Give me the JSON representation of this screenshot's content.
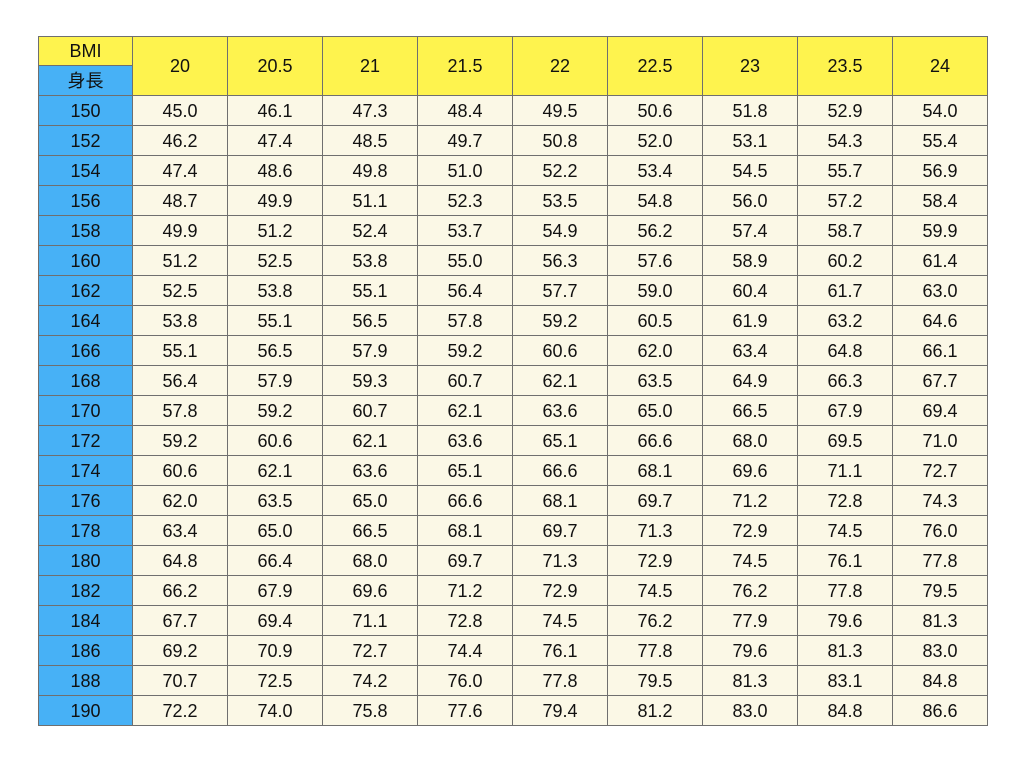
{
  "table": {
    "corner_top": "BMI",
    "corner_bottom": "身長",
    "bmi_values": [
      "20",
      "20.5",
      "21",
      "21.5",
      "22",
      "22.5",
      "23",
      "23.5",
      "24"
    ],
    "rows": [
      {
        "height": "150",
        "weights": [
          "45.0",
          "46.1",
          "47.3",
          "48.4",
          "49.5",
          "50.6",
          "51.8",
          "52.9",
          "54.0"
        ]
      },
      {
        "height": "152",
        "weights": [
          "46.2",
          "47.4",
          "48.5",
          "49.7",
          "50.8",
          "52.0",
          "53.1",
          "54.3",
          "55.4"
        ]
      },
      {
        "height": "154",
        "weights": [
          "47.4",
          "48.6",
          "49.8",
          "51.0",
          "52.2",
          "53.4",
          "54.5",
          "55.7",
          "56.9"
        ]
      },
      {
        "height": "156",
        "weights": [
          "48.7",
          "49.9",
          "51.1",
          "52.3",
          "53.5",
          "54.8",
          "56.0",
          "57.2",
          "58.4"
        ]
      },
      {
        "height": "158",
        "weights": [
          "49.9",
          "51.2",
          "52.4",
          "53.7",
          "54.9",
          "56.2",
          "57.4",
          "58.7",
          "59.9"
        ]
      },
      {
        "height": "160",
        "weights": [
          "51.2",
          "52.5",
          "53.8",
          "55.0",
          "56.3",
          "57.6",
          "58.9",
          "60.2",
          "61.4"
        ]
      },
      {
        "height": "162",
        "weights": [
          "52.5",
          "53.8",
          "55.1",
          "56.4",
          "57.7",
          "59.0",
          "60.4",
          "61.7",
          "63.0"
        ]
      },
      {
        "height": "164",
        "weights": [
          "53.8",
          "55.1",
          "56.5",
          "57.8",
          "59.2",
          "60.5",
          "61.9",
          "63.2",
          "64.6"
        ]
      },
      {
        "height": "166",
        "weights": [
          "55.1",
          "56.5",
          "57.9",
          "59.2",
          "60.6",
          "62.0",
          "63.4",
          "64.8",
          "66.1"
        ]
      },
      {
        "height": "168",
        "weights": [
          "56.4",
          "57.9",
          "59.3",
          "60.7",
          "62.1",
          "63.5",
          "64.9",
          "66.3",
          "67.7"
        ]
      },
      {
        "height": "170",
        "weights": [
          "57.8",
          "59.2",
          "60.7",
          "62.1",
          "63.6",
          "65.0",
          "66.5",
          "67.9",
          "69.4"
        ]
      },
      {
        "height": "172",
        "weights": [
          "59.2",
          "60.6",
          "62.1",
          "63.6",
          "65.1",
          "66.6",
          "68.0",
          "69.5",
          "71.0"
        ]
      },
      {
        "height": "174",
        "weights": [
          "60.6",
          "62.1",
          "63.6",
          "65.1",
          "66.6",
          "68.1",
          "69.6",
          "71.1",
          "72.7"
        ]
      },
      {
        "height": "176",
        "weights": [
          "62.0",
          "63.5",
          "65.0",
          "66.6",
          "68.1",
          "69.7",
          "71.2",
          "72.8",
          "74.3"
        ]
      },
      {
        "height": "178",
        "weights": [
          "63.4",
          "65.0",
          "66.5",
          "68.1",
          "69.7",
          "71.3",
          "72.9",
          "74.5",
          "76.0"
        ]
      },
      {
        "height": "180",
        "weights": [
          "64.8",
          "66.4",
          "68.0",
          "69.7",
          "71.3",
          "72.9",
          "74.5",
          "76.1",
          "77.8"
        ]
      },
      {
        "height": "182",
        "weights": [
          "66.2",
          "67.9",
          "69.6",
          "71.2",
          "72.9",
          "74.5",
          "76.2",
          "77.8",
          "79.5"
        ]
      },
      {
        "height": "184",
        "weights": [
          "67.7",
          "69.4",
          "71.1",
          "72.8",
          "74.5",
          "76.2",
          "77.9",
          "79.6",
          "81.3"
        ]
      },
      {
        "height": "186",
        "weights": [
          "69.2",
          "70.9",
          "72.7",
          "74.4",
          "76.1",
          "77.8",
          "79.6",
          "81.3",
          "83.0"
        ]
      },
      {
        "height": "188",
        "weights": [
          "70.7",
          "72.5",
          "74.2",
          "76.0",
          "77.8",
          "79.5",
          "81.3",
          "83.1",
          "84.8"
        ]
      },
      {
        "height": "190",
        "weights": [
          "72.2",
          "74.0",
          "75.8",
          "77.6",
          "79.4",
          "81.2",
          "83.0",
          "84.8",
          "86.6"
        ]
      }
    ]
  },
  "colors": {
    "bmi_header_bg": "#fef34e",
    "height_header_bg": "#47b1f6",
    "value_cell_bg": "#fbf8e6",
    "grid_line": "#6f6f6f",
    "text": "#111111"
  }
}
